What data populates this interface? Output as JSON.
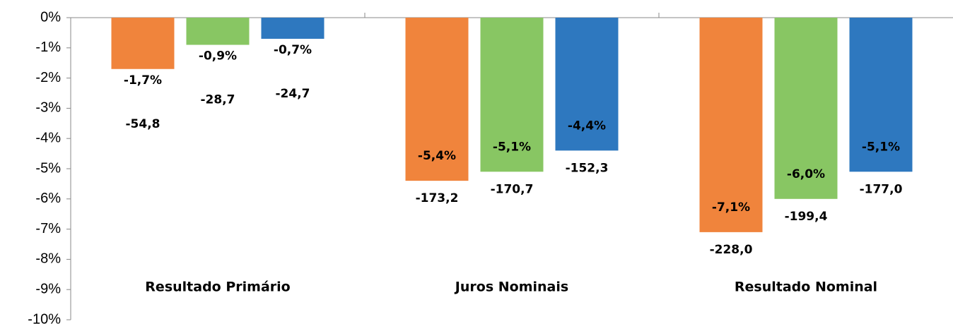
{
  "chart_data": {
    "type": "bar",
    "categories": [
      "Resultado Primário",
      "Juros Nominais",
      "Resultado Nominal"
    ],
    "series": [
      {
        "color": "#f0843c",
        "values": [
          -1.7,
          -5.4,
          -7.1
        ],
        "value_labels": [
          "-1,7%",
          "-5,4%",
          "-7,1%"
        ],
        "secondary_values": [
          -54.8,
          -173.2,
          -228.0
        ],
        "secondary_labels": [
          "-54,8",
          "-173,2",
          "-228,0"
        ]
      },
      {
        "color": "#88c663",
        "values": [
          -0.9,
          -5.1,
          -6.0
        ],
        "value_labels": [
          "-0,9%",
          "-5,1%",
          "-6,0%"
        ],
        "secondary_values": [
          -28.7,
          -170.7,
          -199.4
        ],
        "secondary_labels": [
          "-28,7",
          "-170,7",
          "-199,4"
        ]
      },
      {
        "color": "#2e78bf",
        "values": [
          -0.7,
          -4.4,
          -5.1
        ],
        "value_labels": [
          "-0,7%",
          "-4,4%",
          "-5,1%"
        ],
        "secondary_values": [
          -24.7,
          -152.3,
          -177.0
        ],
        "secondary_labels": [
          "-24,7",
          "-152,3",
          "-177,0"
        ]
      }
    ],
    "ylim": [
      -10,
      0
    ],
    "yticks": [
      {
        "value": 0,
        "label": "0%"
      },
      {
        "value": -1,
        "label": "-1%"
      },
      {
        "value": -2,
        "label": "-2%"
      },
      {
        "value": -3,
        "label": "-3%"
      },
      {
        "value": -4,
        "label": "-4%"
      },
      {
        "value": -5,
        "label": "-5%"
      },
      {
        "value": -6,
        "label": "-6%"
      },
      {
        "value": -7,
        "label": "-7%"
      },
      {
        "value": -8,
        "label": "-8%"
      },
      {
        "value": -9,
        "label": "-9%"
      },
      {
        "value": -10,
        "label": "-10%"
      }
    ],
    "grid": false
  }
}
